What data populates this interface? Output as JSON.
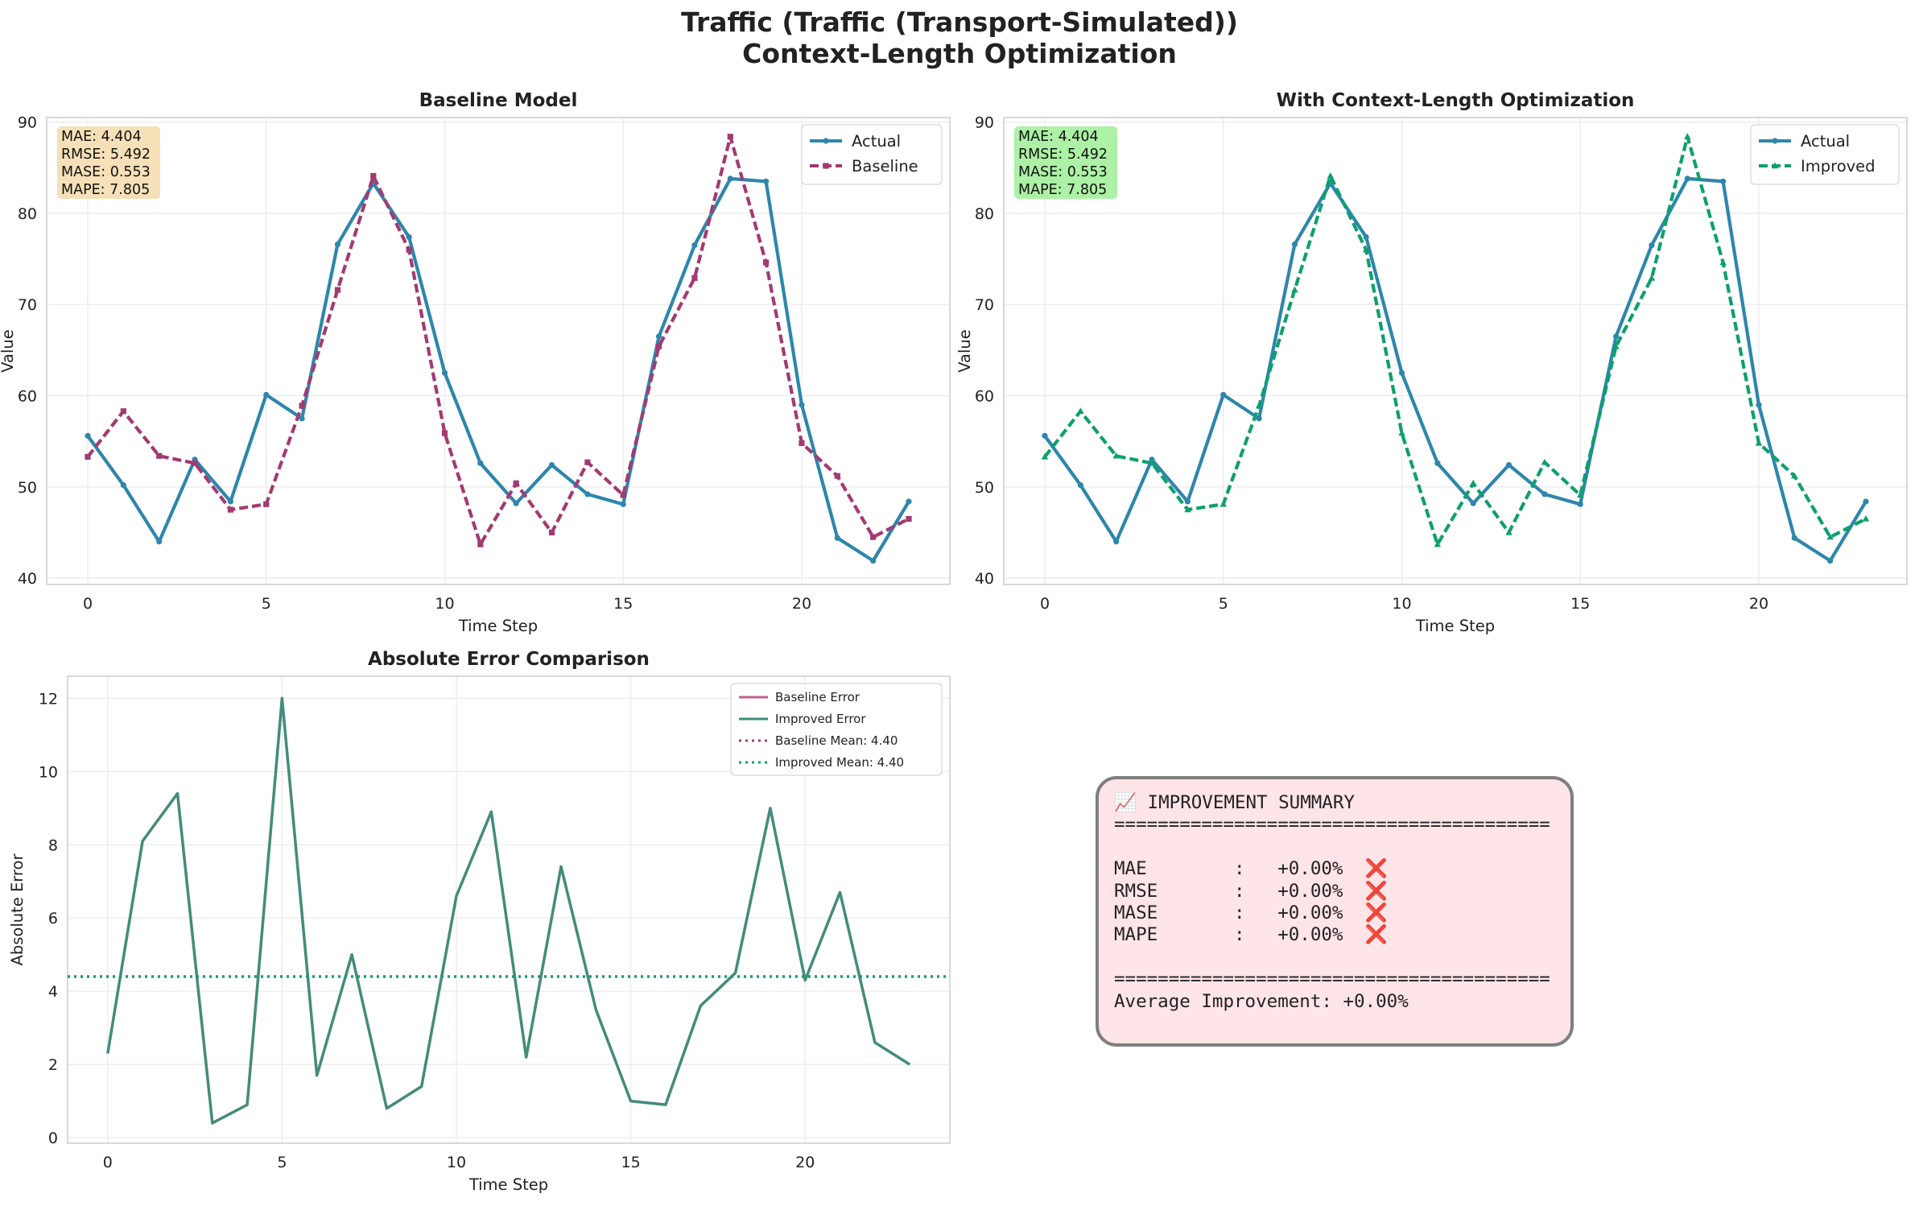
{
  "figure": {
    "title_line1": "Traffic (Traffic (Transport-Simulated))",
    "title_line2": "Context-Length Optimization"
  },
  "colors": {
    "actual": "#2e86ab",
    "baseline": "#a23b72",
    "improved": "#0e9f6e",
    "error_line": "#3a8f7a",
    "baseline_box": "#f5deb3",
    "improved_box": "#a8f0a0",
    "summary_bg": "#ffe4e8",
    "summary_border": "#7f7f7f"
  },
  "summary": {
    "header": "📈 IMPROVEMENT SUMMARY",
    "separator": "========================================",
    "rows": [
      "MAE        :   +0.00%  ❌",
      "RMSE       :   +0.00%  ❌",
      "MASE       :   +0.00%  ❌",
      "MAPE       :   +0.00%  ❌"
    ],
    "average": "Average Improvement: +0.00%"
  },
  "chart_data": [
    {
      "type": "line",
      "title": "Baseline Model",
      "xlabel": "Time Step",
      "ylabel": "Value",
      "xlim": [
        -1.15,
        24.15
      ],
      "ylim": [
        39.3,
        90.5
      ],
      "xticks": [
        0,
        5,
        10,
        15,
        20
      ],
      "yticks": [
        40,
        50,
        60,
        70,
        80,
        90
      ],
      "grid": true,
      "legend_position": "top-right",
      "metrics_box": [
        "MAE: 4.404",
        "RMSE: 5.492",
        "MASE: 0.553",
        "MAPE: 7.805"
      ],
      "metrics_box_color": "#f5deb3",
      "x": [
        0,
        1,
        2,
        3,
        4,
        5,
        6,
        7,
        8,
        9,
        10,
        11,
        12,
        13,
        14,
        15,
        16,
        17,
        18,
        19,
        20,
        21,
        22,
        23
      ],
      "series": [
        {
          "name": "Actual",
          "color": "#2e86ab",
          "style": "solid",
          "marker": "circle",
          "values": [
            55.6,
            50.2,
            44.0,
            53.0,
            48.4,
            60.1,
            57.5,
            76.6,
            83.3,
            77.4,
            62.5,
            52.6,
            48.2,
            52.4,
            49.2,
            48.1,
            66.5,
            76.5,
            83.8,
            83.5,
            59.0,
            44.4,
            41.9,
            48.4
          ]
        },
        {
          "name": "Baseline",
          "color": "#a23b72",
          "style": "dashed",
          "marker": "square",
          "values": [
            53.3,
            58.3,
            53.4,
            52.6,
            47.5,
            48.1,
            58.9,
            71.6,
            84.1,
            76.0,
            55.9,
            43.7,
            50.4,
            45.0,
            52.7,
            49.1,
            65.4,
            72.9,
            88.4,
            74.6,
            54.8,
            51.2,
            44.5,
            46.5
          ]
        }
      ]
    },
    {
      "type": "line",
      "title": "With Context-Length Optimization",
      "xlabel": "Time Step",
      "ylabel": "Value",
      "xlim": [
        -1.15,
        24.15
      ],
      "ylim": [
        39.3,
        90.5
      ],
      "xticks": [
        0,
        5,
        10,
        15,
        20
      ],
      "yticks": [
        40,
        50,
        60,
        70,
        80,
        90
      ],
      "grid": true,
      "legend_position": "top-right",
      "metrics_box": [
        "MAE: 4.404",
        "RMSE: 5.492",
        "MASE: 0.553",
        "MAPE: 7.805"
      ],
      "metrics_box_color": "#a8f0a0",
      "x": [
        0,
        1,
        2,
        3,
        4,
        5,
        6,
        7,
        8,
        9,
        10,
        11,
        12,
        13,
        14,
        15,
        16,
        17,
        18,
        19,
        20,
        21,
        22,
        23
      ],
      "series": [
        {
          "name": "Actual",
          "color": "#2e86ab",
          "style": "solid",
          "marker": "circle",
          "values": [
            55.6,
            50.2,
            44.0,
            53.0,
            48.4,
            60.1,
            57.5,
            76.6,
            83.3,
            77.4,
            62.5,
            52.6,
            48.2,
            52.4,
            49.2,
            48.1,
            66.5,
            76.5,
            83.8,
            83.5,
            59.0,
            44.4,
            41.9,
            48.4
          ]
        },
        {
          "name": "Improved",
          "color": "#0e9f6e",
          "style": "dashed",
          "marker": "triangle",
          "values": [
            53.3,
            58.3,
            53.4,
            52.6,
            47.5,
            48.1,
            58.9,
            71.6,
            84.1,
            76.0,
            55.9,
            43.7,
            50.4,
            45.0,
            52.7,
            49.1,
            65.4,
            72.9,
            88.4,
            74.6,
            54.8,
            51.2,
            44.5,
            46.5
          ]
        }
      ]
    },
    {
      "type": "line",
      "title": "Absolute Error Comparison",
      "xlabel": "Time Step",
      "ylabel": "Absolute Error",
      "xlim": [
        -1.15,
        24.15
      ],
      "ylim": [
        -0.15,
        12.6
      ],
      "xticks": [
        0,
        5,
        10,
        15,
        20
      ],
      "yticks": [
        0,
        2,
        4,
        6,
        8,
        10,
        12
      ],
      "grid": true,
      "legend_position": "top-right",
      "x": [
        0,
        1,
        2,
        3,
        4,
        5,
        6,
        7,
        8,
        9,
        10,
        11,
        12,
        13,
        14,
        15,
        16,
        17,
        18,
        19,
        20,
        21,
        22,
        23
      ],
      "series": [
        {
          "name": "Baseline Error",
          "color": "#c0628f",
          "style": "solid",
          "values": [
            2.3,
            8.1,
            9.4,
            0.4,
            0.9,
            12.0,
            1.7,
            5.0,
            0.8,
            1.4,
            6.6,
            8.9,
            2.2,
            7.4,
            3.5,
            1.0,
            0.9,
            3.6,
            4.5,
            9.0,
            4.3,
            6.7,
            2.6,
            2.0
          ]
        },
        {
          "name": "Improved Error",
          "color": "#3a8f7a",
          "style": "solid",
          "values": [
            2.3,
            8.1,
            9.4,
            0.4,
            0.9,
            12.0,
            1.7,
            5.0,
            0.8,
            1.4,
            6.6,
            8.9,
            2.2,
            7.4,
            3.5,
            1.0,
            0.9,
            3.6,
            4.5,
            9.0,
            4.3,
            6.7,
            2.6,
            2.0
          ]
        },
        {
          "name": "Baseline Mean: 4.40",
          "color": "#a23b72",
          "style": "dotted",
          "hline": 4.4
        },
        {
          "name": "Improved Mean: 4.40",
          "color": "#0e9f6e",
          "style": "dotted",
          "hline": 4.4
        }
      ]
    }
  ]
}
